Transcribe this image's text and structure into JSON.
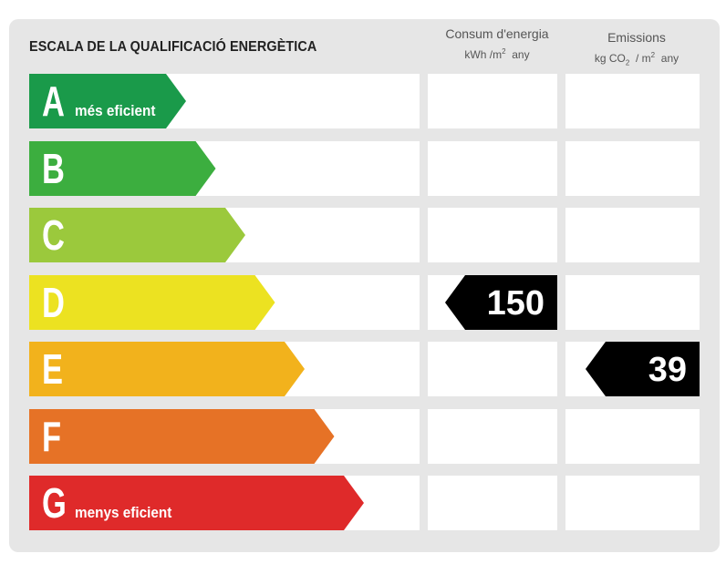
{
  "title": "ESCALA DE LA QUALIFICACIÓ ENERGÈTICA",
  "columns": {
    "energy": {
      "label": "Consum d'energia",
      "unit_pre": "kWh /m",
      "unit_sup": "2",
      "unit_post": "any"
    },
    "emissions": {
      "label": "Emissions",
      "unit_kg": "kg CO",
      "unit_sub": "2",
      "unit_mid": "/ m",
      "unit_sup": "2",
      "unit_post": "any"
    }
  },
  "ratings": [
    {
      "letter": "A",
      "desc": "més eficient",
      "color": "#1a9a4a"
    },
    {
      "letter": "B",
      "desc": "",
      "color": "#3cae3f"
    },
    {
      "letter": "C",
      "desc": "",
      "color": "#9bc93c"
    },
    {
      "letter": "D",
      "desc": "",
      "color": "#ece221"
    },
    {
      "letter": "E",
      "desc": "",
      "color": "#f2b21c"
    },
    {
      "letter": "F",
      "desc": "",
      "color": "#e67226"
    },
    {
      "letter": "G",
      "desc": "menys eficient",
      "color": "#df2a2a"
    }
  ],
  "energy_rating": {
    "letter": "D",
    "value": "150"
  },
  "emissions_rating": {
    "letter": "E",
    "value": "39"
  }
}
